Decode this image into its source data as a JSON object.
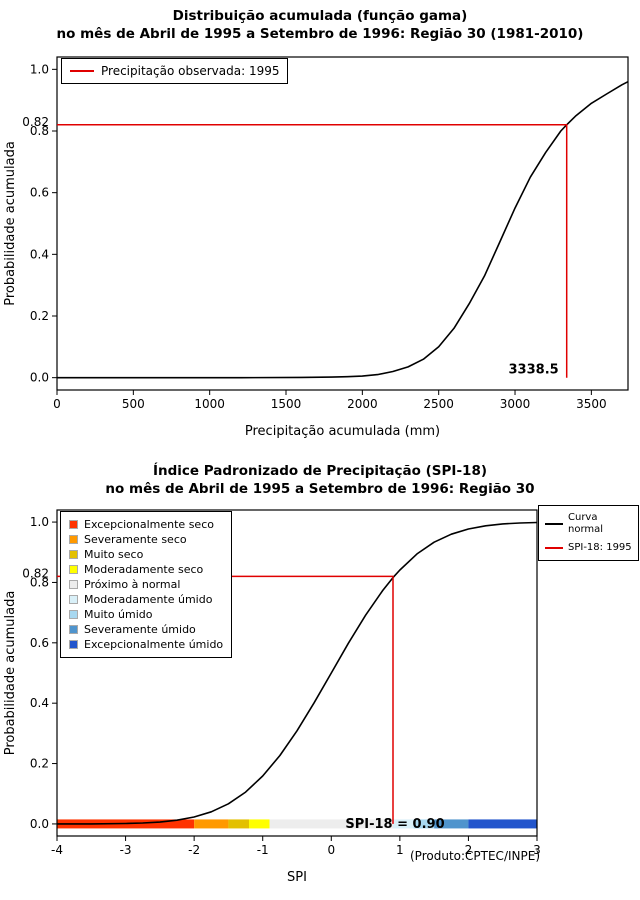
{
  "chart_data": [
    {
      "type": "line",
      "title": "Distribuição acumulada (função gama)",
      "subtitle": "no mês de Abril de 1995 a Setembro de 1996: Região 30 (1981-2010)",
      "xlabel": "Precipitação acumulada (mm)",
      "ylabel": "Probabilidade acumulada",
      "xlim": [
        0,
        3740
      ],
      "ylim": [
        -0.04,
        1.04
      ],
      "xticks": [
        0,
        500,
        1000,
        1500,
        2000,
        2500,
        3000,
        3500
      ],
      "xtick_labels": [
        "0",
        "500",
        "1000",
        "1500",
        "2000",
        "2500",
        "3000",
        "3500"
      ],
      "yticks": [
        0,
        0.2,
        0.4,
        0.6,
        0.8,
        1
      ],
      "ytick_labels": [
        "0.0",
        "0.2",
        "0.4",
        "0.6",
        "0.8",
        "1.0"
      ],
      "grid": false,
      "curve_color": "#000000",
      "marker_color": "#e00000",
      "marker": {
        "x": 3338.5,
        "y": 0.82,
        "x_label": "3338.5",
        "y_axis_label": "0.82"
      },
      "legend": [
        {
          "label": "Precipitação observada: 1995",
          "color": "#e00000"
        }
      ],
      "curve": [
        [
          0,
          0.0
        ],
        [
          400,
          0.0
        ],
        [
          800,
          0.0
        ],
        [
          1200,
          0.0
        ],
        [
          1600,
          0.001
        ],
        [
          1800,
          0.002
        ],
        [
          1900,
          0.003
        ],
        [
          2000,
          0.005
        ],
        [
          2100,
          0.01
        ],
        [
          2200,
          0.02
        ],
        [
          2300,
          0.035
        ],
        [
          2400,
          0.06
        ],
        [
          2500,
          0.1
        ],
        [
          2600,
          0.16
        ],
        [
          2700,
          0.24
        ],
        [
          2800,
          0.33
        ],
        [
          2900,
          0.44
        ],
        [
          3000,
          0.55
        ],
        [
          3100,
          0.65
        ],
        [
          3200,
          0.73
        ],
        [
          3300,
          0.8
        ],
        [
          3338.5,
          0.82
        ],
        [
          3400,
          0.85
        ],
        [
          3500,
          0.89
        ],
        [
          3600,
          0.92
        ],
        [
          3700,
          0.95
        ],
        [
          3740,
          0.96
        ]
      ]
    },
    {
      "type": "line",
      "title": "Índice Padronizado de Precipitação (SPI-18)",
      "subtitle": "no mês de Abril de 1995 a Setembro de 1996: Região 30",
      "xlabel": "SPI",
      "ylabel": "Probabilidade acumulada",
      "footnote": "(Produto:CPTEC/INPE)",
      "xlim": [
        -4,
        3
      ],
      "ylim": [
        -0.04,
        1.04
      ],
      "xticks": [
        -4,
        -3,
        -2,
        -1,
        0,
        1,
        2,
        3
      ],
      "xtick_labels": [
        "-4",
        "-3",
        "-2",
        "-1",
        "0",
        "1",
        "2",
        "3"
      ],
      "yticks": [
        0,
        0.2,
        0.4,
        0.6,
        0.8,
        1
      ],
      "ytick_labels": [
        "0.0",
        "0.2",
        "0.4",
        "0.6",
        "0.8",
        "1.0"
      ],
      "grid": false,
      "curve_color": "#000000",
      "marker_color": "#e00000",
      "marker": {
        "x": 0.9,
        "y": 0.82,
        "label": "SPI-18 = 0.90",
        "y_axis_label": "0.82"
      },
      "legend_right": [
        {
          "label": "Curva normal",
          "color": "#000000"
        },
        {
          "label": "SPI-18: 1995",
          "color": "#e00000"
        }
      ],
      "categories": [
        {
          "label": "Excepcionalmente seco",
          "color": "#ff3300",
          "from": -4,
          "to": -2
        },
        {
          "label": "Severamente seco",
          "color": "#ff9900",
          "from": -2,
          "to": -1.5
        },
        {
          "label": "Muito seco",
          "color": "#e3c000",
          "from": -1.5,
          "to": -1.2
        },
        {
          "label": "Moderadamente seco",
          "color": "#ffff00",
          "from": -1.2,
          "to": -0.9
        },
        {
          "label": "Próximo à normal",
          "color": "#ededed",
          "from": -0.9,
          "to": 0.9
        },
        {
          "label": "Moderadamente úmido",
          "color": "#d9f0f8",
          "from": 0.9,
          "to": 1.2
        },
        {
          "label": "Muito úmido",
          "color": "#a8d8f0",
          "from": 1.2,
          "to": 1.5
        },
        {
          "label": "Severamente úmido",
          "color": "#4f94cd",
          "from": 1.5,
          "to": 2
        },
        {
          "label": "Excepcionalmente úmido",
          "color": "#2255cc",
          "from": 2,
          "to": 3
        }
      ],
      "curve": [
        [
          -4,
          0.0
        ],
        [
          -3.5,
          0.0002
        ],
        [
          -3,
          0.0013
        ],
        [
          -2.75,
          0.003
        ],
        [
          -2.5,
          0.0062
        ],
        [
          -2.25,
          0.0122
        ],
        [
          -2,
          0.0228
        ],
        [
          -1.75,
          0.0401
        ],
        [
          -1.5,
          0.0668
        ],
        [
          -1.25,
          0.1056
        ],
        [
          -1,
          0.1587
        ],
        [
          -0.75,
          0.2266
        ],
        [
          -0.5,
          0.3085
        ],
        [
          -0.25,
          0.4013
        ],
        [
          0,
          0.5
        ],
        [
          0.25,
          0.5987
        ],
        [
          0.5,
          0.6915
        ],
        [
          0.75,
          0.7734
        ],
        [
          0.9,
          0.8159
        ],
        [
          1,
          0.8413
        ],
        [
          1.25,
          0.8944
        ],
        [
          1.5,
          0.9332
        ],
        [
          1.75,
          0.9599
        ],
        [
          2,
          0.9772
        ],
        [
          2.25,
          0.9878
        ],
        [
          2.5,
          0.9938
        ],
        [
          2.75,
          0.997
        ],
        [
          3,
          0.9987
        ]
      ]
    }
  ]
}
